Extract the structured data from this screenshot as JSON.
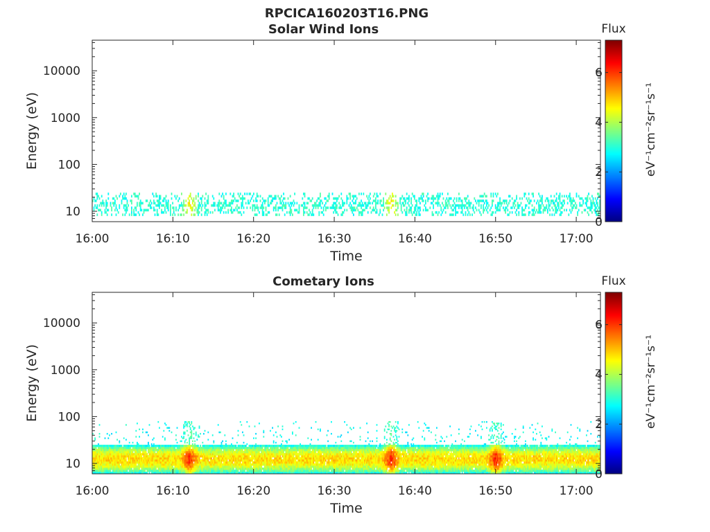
{
  "figure": {
    "title": "RPCICA160203T16.PNG"
  },
  "chart_data": [
    {
      "type": "heatmap",
      "title": "Solar Wind Ions",
      "xlabel": "Time",
      "ylabel": "Energy (eV)",
      "x_ticks": [
        "16:00",
        "16:10",
        "16:20",
        "16:30",
        "16:40",
        "16:50",
        "17:00"
      ],
      "xlim": [
        "16:00",
        "17:03"
      ],
      "y_scale": "log",
      "y_ticks": [
        10,
        100,
        1000,
        10000
      ],
      "y_tick_labels": [
        "10",
        "100",
        "1000",
        "10000"
      ],
      "ylim": [
        6,
        45000
      ],
      "colorbar": {
        "title": "Flux",
        "label": "eV⁻¹cm⁻²sr⁻¹s⁻¹",
        "ticks": [
          0,
          2,
          4,
          6
        ],
        "range": [
          0,
          7.3
        ],
        "colormap": "jet"
      },
      "bands": [
        {
          "energy_range": [
            8,
            25
          ],
          "typical_flux": 3.0,
          "peak_flux": 4.6,
          "coverage": "intermittent"
        }
      ],
      "hotspots": [
        {
          "time": "16:12",
          "flux": 4.5
        },
        {
          "time": "16:37",
          "flux": 4.2
        }
      ]
    },
    {
      "type": "heatmap",
      "title": "Cometary Ions",
      "xlabel": "Time",
      "ylabel": "Energy (eV)",
      "x_ticks": [
        "16:00",
        "16:10",
        "16:20",
        "16:30",
        "16:40",
        "16:50",
        "17:00"
      ],
      "xlim": [
        "16:00",
        "17:03"
      ],
      "y_scale": "log",
      "y_ticks": [
        10,
        100,
        1000,
        10000
      ],
      "y_tick_labels": [
        "10",
        "100",
        "1000",
        "10000"
      ],
      "ylim": [
        6,
        45000
      ],
      "colorbar": {
        "title": "Flux",
        "label": "eV⁻¹cm⁻²sr⁻¹s⁻¹",
        "ticks": [
          0,
          2,
          4,
          6
        ],
        "range": [
          0,
          7.3
        ],
        "colormap": "jet"
      },
      "bands": [
        {
          "energy_range": [
            6,
            25
          ],
          "typical_flux": 4.8,
          "peak_flux": 6.2,
          "coverage": "continuous"
        },
        {
          "energy_range": [
            25,
            80
          ],
          "typical_flux": 2.8,
          "peak_flux": 3.3,
          "coverage": "sparse"
        }
      ],
      "hotspots": [
        {
          "time": "16:12",
          "flux": 6.2
        },
        {
          "time": "16:37",
          "flux": 6.0
        },
        {
          "time": "16:50",
          "flux": 5.8
        }
      ]
    }
  ]
}
